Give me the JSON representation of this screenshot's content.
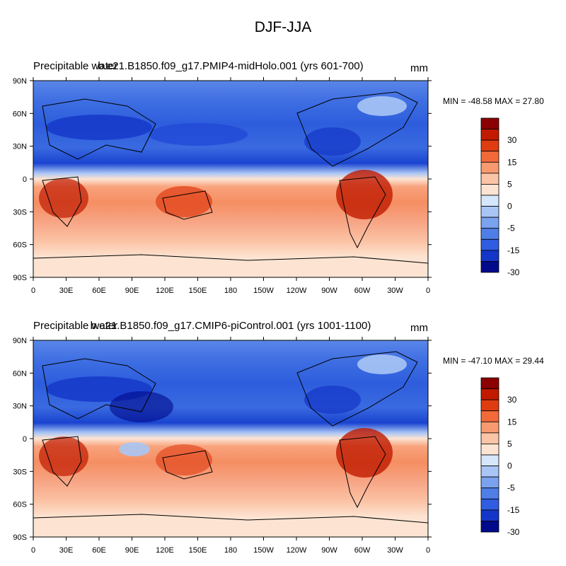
{
  "title": "DJF-JJA",
  "panels": [
    {
      "left_title": "Precipitable water",
      "center_title": "b.e21.B1850.f09_g17.PMIP4-midHolo.001 (yrs 601-700)",
      "units": "mm",
      "stats": "MIN = -48.58 MAX =  27.80"
    },
    {
      "left_title": "Precipitable water",
      "center_title": "b.e21.B1850.f09_g17.CMIP6-piControl.001 (yrs 1001-1100)",
      "units": "mm",
      "stats": "MIN = -47.10 MAX =  29.44"
    }
  ],
  "lat_labels": [
    "90N",
    "60N",
    "30N",
    "0",
    "30S",
    "60S",
    "90S"
  ],
  "lon_labels": [
    "0",
    "30E",
    "60E",
    "90E",
    "120E",
    "150E",
    "180",
    "150W",
    "120W",
    "90W",
    "60W",
    "30W",
    "0"
  ],
  "colorbar": {
    "labels": [
      "30",
      "15",
      "5",
      "0",
      "-5",
      "-15",
      "-30"
    ],
    "colors": [
      "#8b0000",
      "#c11a00",
      "#e03c12",
      "#f26a3a",
      "#f79a70",
      "#fbc4a6",
      "#fde4d2",
      "#d6e6fb",
      "#a9c5f5",
      "#7aa2ee",
      "#4f7ee6",
      "#2f5ce0",
      "#1436c8",
      "#000a8a"
    ]
  }
}
